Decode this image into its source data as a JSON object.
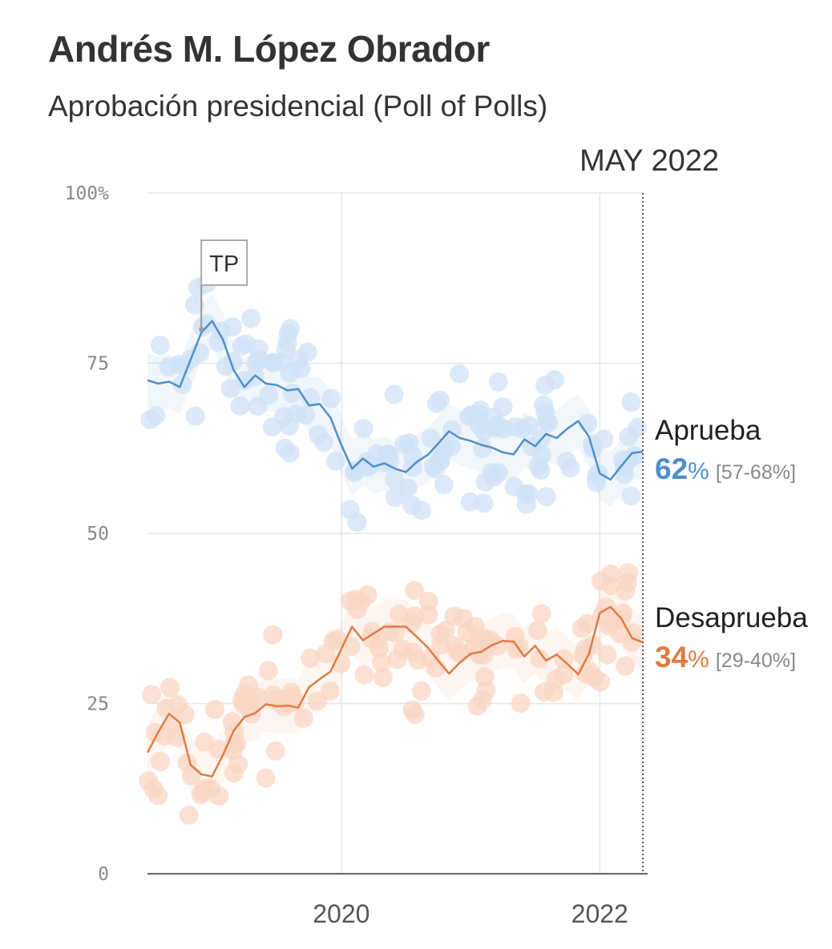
{
  "title": "Andrés M. López Obrador",
  "subtitle": "Aprobación presidencial (Poll of Polls)",
  "chart_data": {
    "type": "line",
    "date_label": "MAY 2022",
    "x_ticks": [
      "2020",
      "2022"
    ],
    "y_ticks": [
      "100%",
      "75",
      "50",
      "25",
      "0"
    ],
    "ylim": [
      0,
      100
    ],
    "xlim": [
      "2018-07",
      "2022-05"
    ],
    "grid": true,
    "annotation": {
      "label": "TP",
      "x": "2018-12"
    },
    "series": [
      {
        "name": "Aprueba",
        "color": "#4f8fcc",
        "dot_color": "#cfe2f6",
        "current_value": "62",
        "pct_sign": "%",
        "range": "[57-68%]",
        "x": [
          "2018-07",
          "2018-08",
          "2018-09",
          "2018-10",
          "2018-11",
          "2018-12",
          "2019-01",
          "2019-02",
          "2019-03",
          "2019-04",
          "2019-05",
          "2019-06",
          "2019-07",
          "2019-08",
          "2019-09",
          "2019-10",
          "2019-11",
          "2019-12",
          "2020-01",
          "2020-02",
          "2020-03",
          "2020-04",
          "2020-05",
          "2020-06",
          "2020-07",
          "2020-08",
          "2020-09",
          "2020-10",
          "2020-11",
          "2020-12",
          "2021-01",
          "2021-02",
          "2021-03",
          "2021-04",
          "2021-05",
          "2021-06",
          "2021-07",
          "2021-08",
          "2021-09",
          "2021-10",
          "2021-11",
          "2021-12",
          "2022-01",
          "2022-02",
          "2022-03",
          "2022-04",
          "2022-05"
        ],
        "values": [
          72.5,
          72,
          72.3,
          71.5,
          75.5,
          79.5,
          81.2,
          78.5,
          74,
          71.5,
          73.2,
          72,
          71.8,
          71,
          71.2,
          68.8,
          69,
          67,
          63,
          59.5,
          61,
          59.8,
          60.3,
          59.5,
          59,
          60.5,
          61.5,
          63.2,
          65,
          64,
          63.6,
          63,
          62.6,
          61.9,
          61.6,
          63.8,
          62.8,
          64.6,
          64,
          65.4,
          66.5,
          64.2,
          58.8,
          57.9,
          59.9,
          61.8,
          62
        ]
      },
      {
        "name": "Desaprueba",
        "color": "#e07b42",
        "dot_color": "#fad6c4",
        "current_value": "34",
        "pct_sign": "%",
        "range": "[29-40%]",
        "x": [
          "2018-07",
          "2018-08",
          "2018-09",
          "2018-10",
          "2018-11",
          "2018-12",
          "2019-01",
          "2019-02",
          "2019-03",
          "2019-04",
          "2019-05",
          "2019-06",
          "2019-07",
          "2019-08",
          "2019-09",
          "2019-10",
          "2019-11",
          "2019-12",
          "2020-01",
          "2020-02",
          "2020-03",
          "2020-04",
          "2020-05",
          "2020-06",
          "2020-07",
          "2020-08",
          "2020-09",
          "2020-10",
          "2020-11",
          "2020-12",
          "2021-01",
          "2021-02",
          "2021-03",
          "2021-04",
          "2021-05",
          "2021-06",
          "2021-07",
          "2021-08",
          "2021-09",
          "2021-10",
          "2021-11",
          "2021-12",
          "2022-01",
          "2022-02",
          "2022-03",
          "2022-04",
          "2022-05"
        ],
        "values": [
          17.8,
          20.8,
          23.5,
          22.2,
          16,
          14.6,
          14.3,
          17.4,
          21,
          23,
          23.6,
          24.9,
          24.6,
          24.7,
          24.4,
          27.4,
          28.6,
          29.7,
          33,
          36.3,
          34.3,
          35.3,
          36.3,
          36.3,
          36.3,
          34.8,
          33.3,
          31.3,
          29.4,
          31,
          32.3,
          32.6,
          33.6,
          34.2,
          34.1,
          31.9,
          33.5,
          31.3,
          32.2,
          30.8,
          29.3,
          32.3,
          38.3,
          39.2,
          37.5,
          34.6,
          34
        ]
      }
    ]
  }
}
